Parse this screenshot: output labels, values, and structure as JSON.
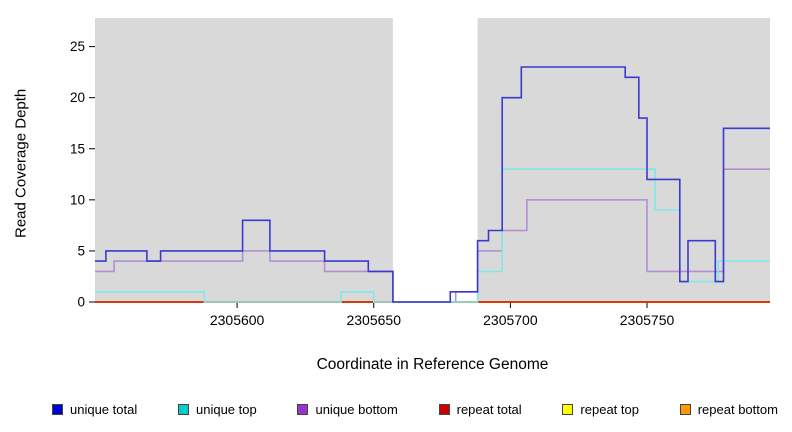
{
  "chart_data": {
    "type": "line",
    "subtype": "step",
    "title": "",
    "xlabel": "Coordinate in Reference Genome",
    "ylabel": "Read Coverage Depth",
    "xlim": [
      2305548,
      2305795
    ],
    "ylim": [
      0,
      27.8
    ],
    "x_ticks": [
      2305600,
      2305650,
      2305700,
      2305750
    ],
    "y_ticks": [
      0,
      5,
      10,
      15,
      20,
      25
    ],
    "grid": "off",
    "legend_position": "bottom",
    "plot_bg": "#d9d9d9",
    "gap_region": {
      "from": 2305657,
      "to": 2305688,
      "color": "#ffffff"
    },
    "series": [
      {
        "name": "unique total",
        "color": "#3a3ad0",
        "legend_color": "#0000cc",
        "points": [
          [
            2305548,
            4
          ],
          [
            2305552,
            5
          ],
          [
            2305567,
            4
          ],
          [
            2305572,
            5
          ],
          [
            2305602,
            8
          ],
          [
            2305612,
            5
          ],
          [
            2305632,
            4
          ],
          [
            2305648,
            3
          ],
          [
            2305657,
            0
          ],
          [
            2305678,
            1
          ],
          [
            2305688,
            6
          ],
          [
            2305692,
            7
          ],
          [
            2305697,
            20
          ],
          [
            2305704,
            23
          ],
          [
            2305742,
            22
          ],
          [
            2305747,
            18
          ],
          [
            2305750,
            12
          ],
          [
            2305762,
            2
          ],
          [
            2305765,
            6
          ],
          [
            2305775,
            2
          ],
          [
            2305778,
            17
          ]
        ]
      },
      {
        "name": "unique top",
        "color": "#82e7e7",
        "legend_color": "#00cccc",
        "points": [
          [
            2305548,
            1
          ],
          [
            2305588,
            0
          ],
          [
            2305638,
            1
          ],
          [
            2305650,
            0
          ],
          [
            2305688,
            3
          ],
          [
            2305697,
            13
          ],
          [
            2305753,
            9
          ],
          [
            2305762,
            2
          ],
          [
            2305776,
            4
          ]
        ]
      },
      {
        "name": "unique bottom",
        "color": "#b48fd2",
        "legend_color": "#9933cc",
        "points": [
          [
            2305548,
            3
          ],
          [
            2305555,
            4
          ],
          [
            2305602,
            5
          ],
          [
            2305612,
            4
          ],
          [
            2305632,
            3
          ],
          [
            2305657,
            0
          ],
          [
            2305680,
            1
          ],
          [
            2305688,
            5
          ],
          [
            2305697,
            7
          ],
          [
            2305706,
            10
          ],
          [
            2305750,
            3
          ],
          [
            2305778,
            13
          ]
        ]
      },
      {
        "name": "repeat total",
        "color": "#cc0000",
        "legend_color": "#cc0000",
        "points": [
          [
            2305548,
            0
          ]
        ]
      },
      {
        "name": "repeat top",
        "color": "#ffff00",
        "legend_color": "#ffff00",
        "points": [
          [
            2305548,
            0
          ]
        ]
      },
      {
        "name": "repeat bottom",
        "color": "#ff8c00",
        "legend_color": "#ff9900",
        "points": [
          [
            2305548,
            0
          ]
        ]
      }
    ]
  }
}
